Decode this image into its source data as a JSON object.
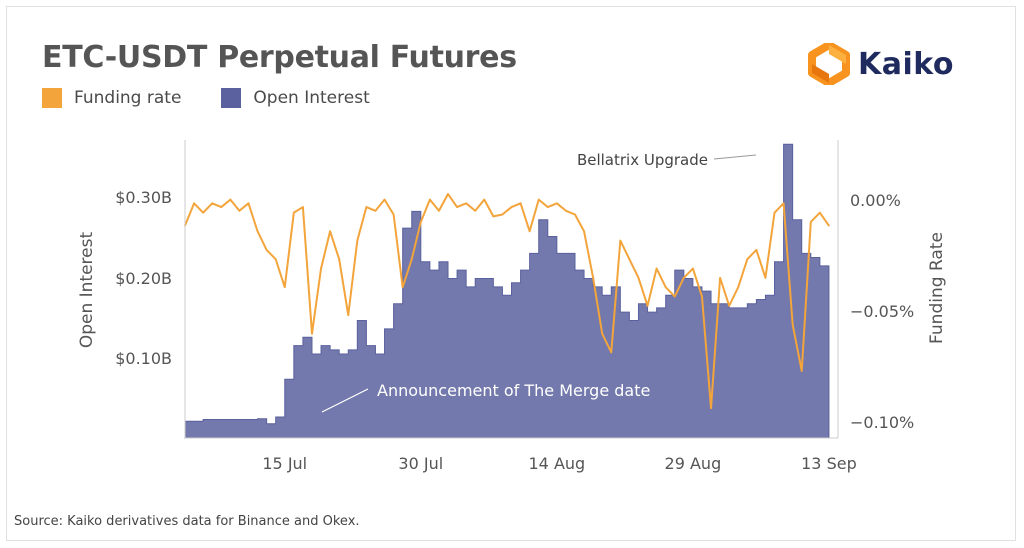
{
  "title": "ETC-USDT Perpetual Futures",
  "logo": {
    "text": "Kaiko",
    "icon": "kaiko-logo-icon",
    "color": "#1f2a5e",
    "accent": "#f7931e"
  },
  "legend": [
    {
      "label": "Funding rate",
      "color": "#f3a43b"
    },
    {
      "label": "Open Interest",
      "color": "#5a619e"
    }
  ],
  "source": "Source: Kaiko derivatives data for Binance and Okex.",
  "chart_data": {
    "type": "line",
    "x_ticks": [
      "15 Jul",
      "30 Jul",
      "14 Aug",
      "29 Aug",
      "13 Sep"
    ],
    "xlim": [
      "2022-07-04",
      "2022-09-14"
    ],
    "left_axis": {
      "label": "Open Interest",
      "ticks": [
        "$0.10B",
        "$0.20B",
        "$0.30B"
      ],
      "tick_values": [
        0.1,
        0.2,
        0.3
      ],
      "range": [
        0.0,
        0.355
      ]
    },
    "right_axis": {
      "label": "Funding Rate",
      "ticks": [
        "0.00%",
        "−0.05%",
        "−0.10%"
      ],
      "tick_values": [
        0.0,
        -0.05,
        -0.1
      ],
      "range": [
        -0.116,
        0.044
      ]
    },
    "annotations": [
      {
        "text": "Bellatrix Upgrade",
        "date": "2022-09-09"
      },
      {
        "text": "Announcement of The Merge date",
        "date": "2022-07-15"
      }
    ],
    "series": [
      {
        "name": "Open Interest",
        "type": "area",
        "axis": "left",
        "color": "#5a619e",
        "x": [
          "2022-07-04",
          "2022-07-06",
          "2022-07-08",
          "2022-07-10",
          "2022-07-12",
          "2022-07-13",
          "2022-07-14",
          "2022-07-15",
          "2022-07-16",
          "2022-07-17",
          "2022-07-18",
          "2022-07-19",
          "2022-07-20",
          "2022-07-21",
          "2022-07-22",
          "2022-07-23",
          "2022-07-24",
          "2022-07-25",
          "2022-07-26",
          "2022-07-27",
          "2022-07-28",
          "2022-07-29",
          "2022-07-30",
          "2022-07-31",
          "2022-08-01",
          "2022-08-02",
          "2022-08-03",
          "2022-08-04",
          "2022-08-05",
          "2022-08-06",
          "2022-08-07",
          "2022-08-08",
          "2022-08-09",
          "2022-08-10",
          "2022-08-11",
          "2022-08-12",
          "2022-08-13",
          "2022-08-14",
          "2022-08-15",
          "2022-08-16",
          "2022-08-17",
          "2022-08-18",
          "2022-08-19",
          "2022-08-20",
          "2022-08-21",
          "2022-08-22",
          "2022-08-23",
          "2022-08-24",
          "2022-08-25",
          "2022-08-26",
          "2022-08-27",
          "2022-08-28",
          "2022-08-29",
          "2022-08-30",
          "2022-08-31",
          "2022-09-01",
          "2022-09-02",
          "2022-09-03",
          "2022-09-04",
          "2022-09-05",
          "2022-09-06",
          "2022-09-07",
          "2022-09-08",
          "2022-09-09",
          "2022-09-10",
          "2022-09-11",
          "2022-09-12",
          "2022-09-13"
        ],
        "values": [
          0.02,
          0.022,
          0.022,
          0.022,
          0.023,
          0.017,
          0.025,
          0.07,
          0.11,
          0.12,
          0.1,
          0.11,
          0.105,
          0.1,
          0.105,
          0.14,
          0.11,
          0.1,
          0.13,
          0.16,
          0.25,
          0.27,
          0.21,
          0.2,
          0.21,
          0.19,
          0.2,
          0.18,
          0.19,
          0.19,
          0.18,
          0.17,
          0.185,
          0.2,
          0.22,
          0.26,
          0.24,
          0.22,
          0.22,
          0.2,
          0.19,
          0.18,
          0.17,
          0.18,
          0.15,
          0.14,
          0.16,
          0.15,
          0.155,
          0.17,
          0.2,
          0.19,
          0.18,
          0.175,
          0.16,
          0.16,
          0.155,
          0.155,
          0.16,
          0.165,
          0.17,
          0.21,
          0.35,
          0.26,
          0.22,
          0.215,
          0.205,
          0.19
        ]
      },
      {
        "name": "Funding rate",
        "type": "line",
        "axis": "right",
        "color": "#f3a43b",
        "x": [
          "2022-07-04",
          "2022-07-05",
          "2022-07-06",
          "2022-07-07",
          "2022-07-08",
          "2022-07-09",
          "2022-07-10",
          "2022-07-11",
          "2022-07-12",
          "2022-07-13",
          "2022-07-14",
          "2022-07-15",
          "2022-07-16",
          "2022-07-17",
          "2022-07-18",
          "2022-07-19",
          "2022-07-20",
          "2022-07-21",
          "2022-07-22",
          "2022-07-23",
          "2022-07-24",
          "2022-07-25",
          "2022-07-26",
          "2022-07-27",
          "2022-07-28",
          "2022-07-29",
          "2022-07-30",
          "2022-07-31",
          "2022-08-01",
          "2022-08-02",
          "2022-08-03",
          "2022-08-04",
          "2022-08-05",
          "2022-08-06",
          "2022-08-07",
          "2022-08-08",
          "2022-08-09",
          "2022-08-10",
          "2022-08-11",
          "2022-08-12",
          "2022-08-13",
          "2022-08-14",
          "2022-08-15",
          "2022-08-16",
          "2022-08-17",
          "2022-08-18",
          "2022-08-19",
          "2022-08-20",
          "2022-08-21",
          "2022-08-22",
          "2022-08-23",
          "2022-08-24",
          "2022-08-25",
          "2022-08-26",
          "2022-08-27",
          "2022-08-28",
          "2022-08-29",
          "2022-08-30",
          "2022-08-31",
          "2022-09-01",
          "2022-09-02",
          "2022-09-03",
          "2022-09-04",
          "2022-09-05",
          "2022-09-06",
          "2022-09-07",
          "2022-09-08",
          "2022-09-09",
          "2022-09-10",
          "2022-09-11",
          "2022-09-12",
          "2022-09-13"
        ],
        "values": [
          -0.002,
          0.01,
          0.005,
          0.01,
          0.008,
          0.012,
          0.006,
          0.01,
          -0.005,
          -0.015,
          -0.02,
          -0.035,
          0.005,
          0.008,
          -0.06,
          -0.025,
          -0.005,
          -0.02,
          -0.05,
          -0.01,
          0.008,
          0.006,
          0.012,
          0.004,
          -0.035,
          -0.02,
          0.0,
          0.012,
          0.006,
          0.015,
          0.008,
          0.01,
          0.006,
          0.012,
          0.003,
          0.004,
          0.008,
          0.01,
          -0.005,
          0.012,
          0.008,
          0.01,
          0.006,
          0.004,
          -0.005,
          -0.03,
          -0.06,
          -0.07,
          -0.01,
          -0.02,
          -0.03,
          -0.045,
          -0.025,
          -0.035,
          -0.04,
          -0.03,
          -0.025,
          -0.04,
          -0.1,
          -0.03,
          -0.045,
          -0.035,
          -0.02,
          -0.015,
          -0.03,
          0.005,
          0.01,
          -0.055,
          -0.08,
          0.0,
          0.005,
          -0.002
        ]
      }
    ]
  }
}
